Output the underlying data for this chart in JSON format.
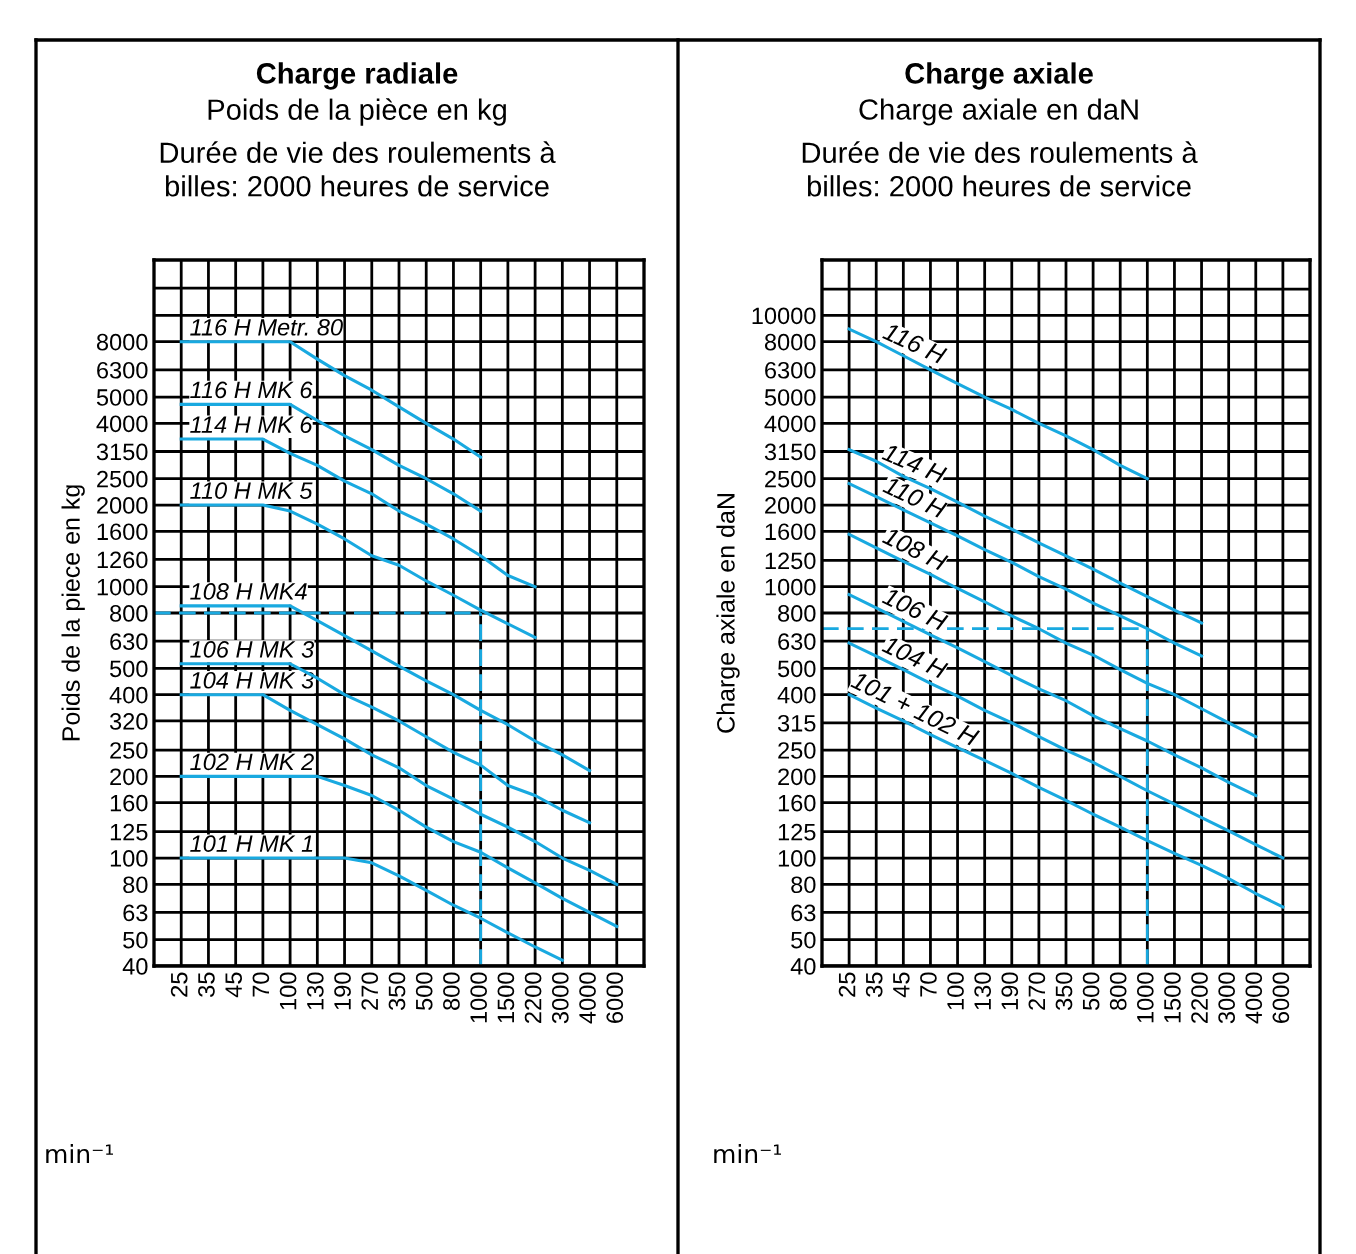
{
  "chart_data": [
    {
      "type": "line",
      "title": "Charge radiale",
      "subtitle": "Poids de la pièce en kg",
      "annotations": [
        "Durée de vie des roulements à\nbilles: 2000 heures de service"
      ],
      "xlabel": "min⁻¹",
      "ylabel": "Poids de la piece en kg",
      "log": "y",
      "grid": true,
      "categories": [
        "25",
        "35",
        "45",
        "70",
        "100",
        "130",
        "190",
        "270",
        "350",
        "500",
        "800",
        "1000",
        "1500",
        "2200",
        "3000",
        "4000",
        "6000"
      ],
      "ylim": [
        40,
        16000
      ],
      "yticks": [
        40,
        50,
        63,
        80,
        100,
        125,
        160,
        200,
        250,
        320,
        400,
        500,
        630,
        800,
        1000,
        1260,
        1600,
        2000,
        2500,
        3150,
        4000,
        5000,
        6300,
        8000,
        {
          "value": 10000,
          "label": null
        },
        {
          "value": 12600,
          "label": null
        }
      ],
      "series": [
        {
          "name": "116 H Metr. 80",
          "color": "#19a9e0",
          "values": [
            8000,
            8000,
            8000,
            8000,
            8000,
            6900,
            6000,
            5300,
            4600,
            4000,
            3500,
            3000,
            null,
            null,
            null,
            null,
            null
          ]
        },
        {
          "name": "116 H MK 6",
          "color": "#19a9e0",
          "values": [
            4700,
            4700,
            4700,
            4700,
            4700,
            4100,
            3600,
            3200,
            2800,
            2500,
            2200,
            1900,
            null,
            null,
            null,
            null,
            null
          ]
        },
        {
          "name": "114 H MK 6",
          "color": "#19a9e0",
          "values": [
            3500,
            3500,
            3500,
            3500,
            3100,
            2800,
            2450,
            2200,
            1900,
            1700,
            1500,
            1300,
            1100,
            1000,
            null,
            null,
            null
          ]
        },
        {
          "name": "110 H MK 5",
          "color": "#19a9e0",
          "values": [
            2000,
            2000,
            2000,
            2000,
            1900,
            1700,
            1500,
            1300,
            1200,
            1050,
            930,
            820,
            730,
            650,
            null,
            null,
            null
          ]
        },
        {
          "name": "108 H MK4",
          "color": "#19a9e0",
          "values": [
            850,
            850,
            850,
            850,
            850,
            750,
            660,
            580,
            510,
            450,
            400,
            350,
            310,
            270,
            240,
            210,
            null
          ]
        },
        {
          "name": "106 H MK 3",
          "color": "#19a9e0",
          "values": [
            520,
            520,
            520,
            520,
            520,
            460,
            400,
            360,
            320,
            280,
            245,
            220,
            185,
            170,
            150,
            135,
            null
          ]
        },
        {
          "name": "104 H MK 3",
          "color": "#19a9e0",
          "values": [
            400,
            400,
            400,
            400,
            350,
            310,
            275,
            240,
            215,
            185,
            165,
            145,
            130,
            115,
            100,
            90,
            80
          ]
        },
        {
          "name": "102 H MK 2",
          "color": "#19a9e0",
          "values": [
            200,
            200,
            200,
            200,
            200,
            200,
            185,
            170,
            150,
            130,
            115,
            105,
            92,
            81,
            71,
            63,
            56
          ]
        },
        {
          "name": "101 H MK 1",
          "color": "#19a9e0",
          "values": [
            100,
            100,
            100,
            100,
            100,
            100,
            100,
            96,
            86,
            76,
            67,
            60,
            53,
            47,
            42,
            null,
            null
          ]
        }
      ],
      "ref_lines": [
        {
          "axis": "y",
          "value": 800,
          "color": "#19a9e0",
          "line_style": "dashed"
        },
        {
          "axis": "x",
          "value": "1000",
          "color": "#19a9e0",
          "line_style": "dashed"
        }
      ]
    },
    {
      "type": "line",
      "title": "Charge axiale",
      "subtitle": "Charge axiale en daN",
      "annotations": [
        "Durée de vie des roulements à\nbilles: 2000 heures de service"
      ],
      "xlabel": "min⁻¹",
      "ylabel": "Charge axiale en daN",
      "log": "y",
      "grid": true,
      "categories": [
        "25",
        "35",
        "45",
        "70",
        "100",
        "130",
        "190",
        "270",
        "350",
        "500",
        "800",
        "1000",
        "1500",
        "2200",
        "3000",
        "4000",
        "6000"
      ],
      "ylim": [
        40,
        16000
      ],
      "yticks": [
        40,
        50,
        63,
        80,
        100,
        125,
        160,
        200,
        250,
        315,
        400,
        500,
        630,
        800,
        1000,
        1250,
        1600,
        2000,
        2500,
        3150,
        4000,
        5000,
        6300,
        8000,
        10000,
        {
          "value": 12500,
          "label": null
        }
      ],
      "series": [
        {
          "name": "116 H",
          "color": "#19a9e0",
          "values": [
            8900,
            8000,
            7100,
            6300,
            5600,
            5000,
            4500,
            4000,
            3600,
            3200,
            2800,
            2500,
            null,
            null,
            null,
            null,
            null
          ]
        },
        {
          "name": "114 H",
          "color": "#19a9e0",
          "values": [
            3200,
            2900,
            2550,
            2300,
            2050,
            1820,
            1630,
            1450,
            1300,
            1160,
            1030,
            920,
            820,
            735,
            null,
            null,
            null
          ]
        },
        {
          "name": "110 H",
          "color": "#19a9e0",
          "values": [
            2400,
            2150,
            1920,
            1720,
            1540,
            1370,
            1230,
            1090,
            980,
            870,
            780,
            700,
            620,
            555,
            null,
            null,
            null
          ]
        },
        {
          "name": "108 H",
          "color": "#19a9e0",
          "values": [
            1560,
            1390,
            1240,
            1110,
            985,
            880,
            780,
            700,
            620,
            560,
            495,
            440,
            400,
            355,
            315,
            280,
            null
          ]
        },
        {
          "name": "106 H",
          "color": "#19a9e0",
          "values": [
            935,
            835,
            745,
            665,
            595,
            530,
            470,
            420,
            380,
            335,
            300,
            270,
            240,
            215,
            190,
            170,
            null
          ]
        },
        {
          "name": "104 H",
          "color": "#19a9e0",
          "values": [
            620,
            555,
            495,
            440,
            395,
            350,
            315,
            280,
            250,
            225,
            200,
            177,
            158,
            141,
            126,
            112,
            100
          ]
        },
        {
          "name": "101 + 102 H",
          "color": "#19a9e0",
          "values": [
            400,
            357,
            320,
            285,
            255,
            229,
            205,
            182,
            163,
            145,
            130,
            116,
            104,
            94,
            84,
            74,
            66
          ]
        }
      ],
      "ref_lines": [
        {
          "axis": "y",
          "value": 700,
          "color": "#19a9e0",
          "line_style": "dashed"
        },
        {
          "axis": "x",
          "value": "1000",
          "color": "#19a9e0",
          "line_style": "dashed"
        }
      ]
    }
  ]
}
